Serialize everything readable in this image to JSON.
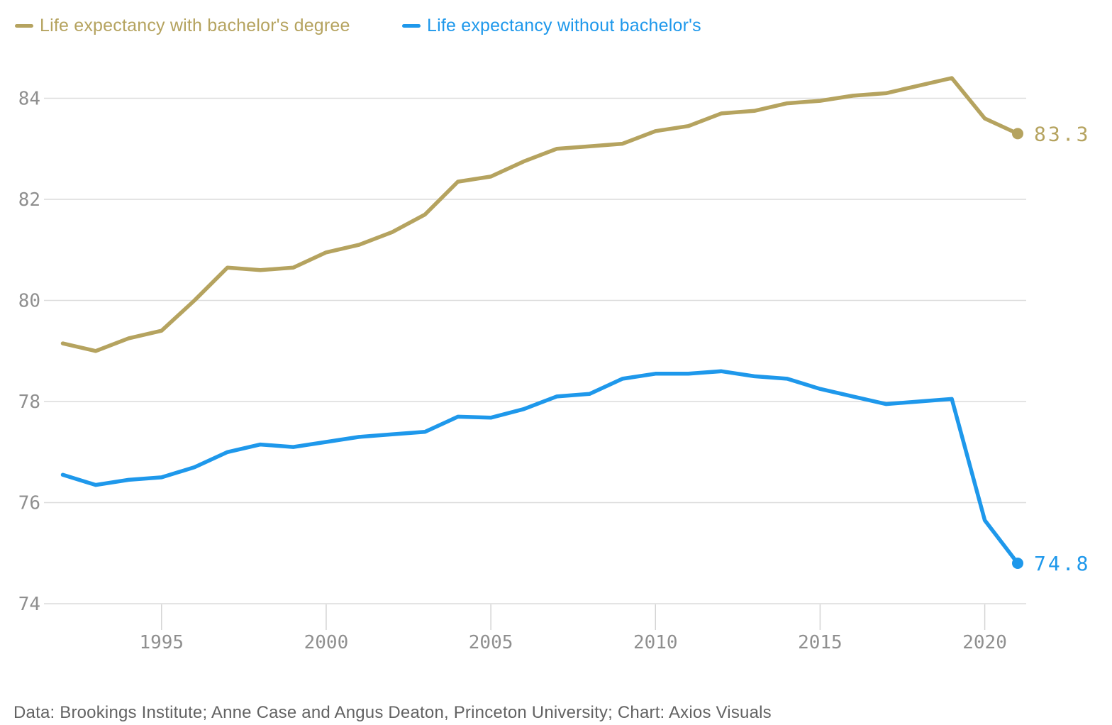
{
  "legend": {
    "items": [
      {
        "label": "Life expectancy with bachelor's degree",
        "color": "#b5a35f"
      },
      {
        "label": "Life expectancy without bachelor's",
        "color": "#1e98eb"
      }
    ]
  },
  "chart_data": {
    "type": "line",
    "title": "",
    "xlabel": "",
    "ylabel": "",
    "x": [
      1992,
      1993,
      1994,
      1995,
      1996,
      1997,
      1998,
      1999,
      2000,
      2001,
      2002,
      2003,
      2004,
      2005,
      2006,
      2007,
      2008,
      2009,
      2010,
      2011,
      2012,
      2013,
      2014,
      2015,
      2016,
      2017,
      2018,
      2019,
      2020,
      2021
    ],
    "series": [
      {
        "name": "Life expectancy with bachelor's degree",
        "color": "#b5a35f",
        "values": [
          79.15,
          79.0,
          79.25,
          79.4,
          80.0,
          80.65,
          80.6,
          80.65,
          80.95,
          81.1,
          81.35,
          81.7,
          82.35,
          82.45,
          82.75,
          83.0,
          83.05,
          83.1,
          83.35,
          83.45,
          83.7,
          83.75,
          83.9,
          83.95,
          84.05,
          84.1,
          84.25,
          84.4,
          83.6,
          83.3
        ],
        "end_label": "83.3"
      },
      {
        "name": "Life expectancy without bachelor's",
        "color": "#1e98eb",
        "values": [
          76.55,
          76.35,
          76.45,
          76.5,
          76.7,
          77.0,
          77.15,
          77.1,
          77.2,
          77.3,
          77.35,
          77.4,
          77.7,
          77.68,
          77.85,
          78.1,
          78.15,
          78.45,
          78.55,
          78.55,
          78.6,
          78.5,
          78.45,
          78.25,
          78.1,
          77.95,
          78.0,
          78.05,
          75.65,
          74.8
        ],
        "end_label": "74.8"
      }
    ],
    "x_ticks": [
      1995,
      2000,
      2005,
      2010,
      2015,
      2020
    ],
    "y_ticks": [
      74,
      76,
      78,
      80,
      82,
      84
    ],
    "xlim": [
      1991.4,
      2021.3
    ],
    "ylim": [
      74,
      84.7
    ],
    "grid": "horizontal",
    "legend_position": "top-left"
  },
  "footer": {
    "text": "Data: Brookings Institute; Anne Case and Angus Deaton, Princeton University; Chart: Axios Visuals"
  },
  "colors": {
    "with_bachelors": "#b5a35f",
    "without_bachelors": "#1e98eb",
    "gridline": "#dcdcdc",
    "tick_mark": "#d4d4d4",
    "axis_label": "#8f8f8f",
    "footer_text": "#636363",
    "background": "#ffffff"
  }
}
